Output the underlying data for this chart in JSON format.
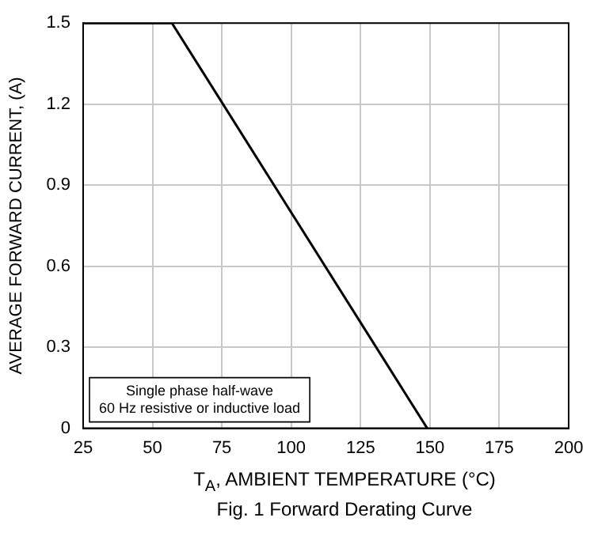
{
  "chart_data": {
    "type": "line",
    "title": "Fig. 1  Forward Derating Curve",
    "xlabel": "T$_{A}$, AMBIENT TEMPERATURE (°C)",
    "ylabel": "AVERAGE FORWARD CURRENT, (A)",
    "annotations": [
      "Single phase half-wave",
      "60 Hz resistive or inductive load"
    ],
    "series": [
      {
        "color": "#000000",
        "x": [
          25,
          57,
          149
        ],
        "values": [
          1.5,
          1.5,
          0
        ]
      }
    ],
    "xlim": [
      25,
      200
    ],
    "xticks": [
      25,
      50,
      75,
      100,
      125,
      150,
      175,
      200
    ],
    "ylim": [
      0,
      1.5
    ],
    "yticks": [
      0,
      0.3,
      0.6,
      0.9,
      1.2,
      1.5
    ],
    "grid": true,
    "legend": false,
    "marker": "none",
    "line_style": "solid"
  }
}
